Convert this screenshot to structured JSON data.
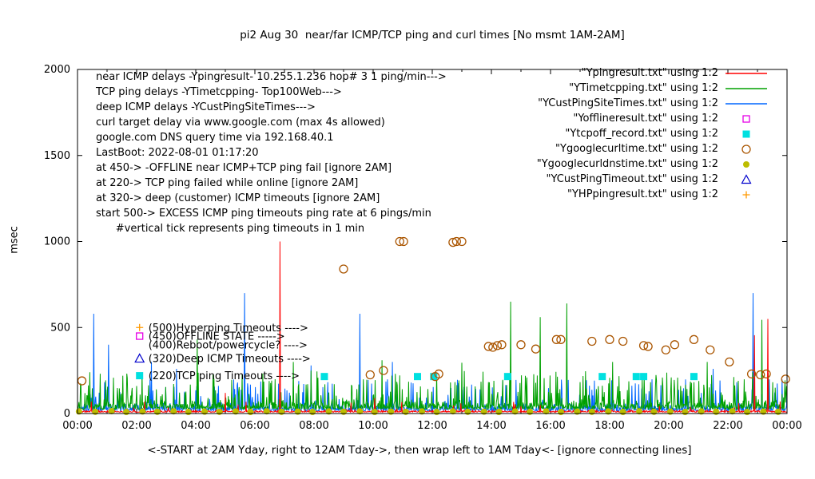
{
  "chart_data": {
    "type": "line+scatter",
    "title": "pi2 Aug 30  near/far ICMP/TCP ping and curl times [No msmt 1AM-2AM]",
    "ylabel": "msec",
    "xlabel": "<-START at 2AM Yday, right to 12AM Tday->, then wrap left to 1AM Tday<- [ignore connecting lines]",
    "xlim": [
      0,
      24
    ],
    "ylim": [
      0,
      2000
    ],
    "xticks": [
      {
        "v": 0,
        "label": "00:00"
      },
      {
        "v": 2,
        "label": "02:00"
      },
      {
        "v": 4,
        "label": "04:00"
      },
      {
        "v": 6,
        "label": "06:00"
      },
      {
        "v": 8,
        "label": "08:00"
      },
      {
        "v": 10,
        "label": "10:00"
      },
      {
        "v": 12,
        "label": "12:00"
      },
      {
        "v": 14,
        "label": "14:00"
      },
      {
        "v": 16,
        "label": "16:00"
      },
      {
        "v": 18,
        "label": "18:00"
      },
      {
        "v": 20,
        "label": "20:00"
      },
      {
        "v": 22,
        "label": "22:00"
      },
      {
        "v": 24,
        "label": "00:00"
      }
    ],
    "yticks": [
      {
        "v": 0,
        "label": "0"
      },
      {
        "v": 500,
        "label": "500"
      },
      {
        "v": 1000,
        "label": "1000"
      },
      {
        "v": 1500,
        "label": "1500"
      },
      {
        "v": 2000,
        "label": "2000"
      }
    ],
    "info_lines": [
      "near ICMP delays -Ypingresult- 10.255.1.236 hop# 3 1 ping/min--->",
      "TCP ping delays -YTimetcpping- Top100Web--->",
      "deep ICMP delays -YCustPingSiteTimes--->",
      "curl target delay via www.google.com (max 4s allowed)",
      "google.com DNS query time via 192.168.40.1",
      "LastBoot: 2022-08-01 01:17:20",
      "at 450-> -OFFLINE near ICMP+TCP ping fail [ignore 2AM]",
      "at 220-> TCP ping failed while online [ignore 2AM]",
      "at 320-> deep (customer) ICMP timeouts [ignore 2AM]",
      "start 500-> EXCESS ICMP ping timeouts ping rate at 6 pings/min",
      "      #vertical tick represents ping timeouts in 1 min"
    ],
    "annotations": [
      {
        "x": 2.1,
        "y": 500,
        "marker": "plus",
        "color": "#ff9900",
        "text": "(500)Hyperping Timeouts ---->"
      },
      {
        "x": 2.1,
        "y": 450,
        "marker": "open-square",
        "color": "#e600e6",
        "text": "(450)OFFLINE STATE ----->"
      },
      {
        "x": 2.1,
        "y": 400,
        "marker": "none",
        "color": "#000000",
        "text": "(400)Reboot/powercycle? ---->"
      },
      {
        "x": 2.1,
        "y": 320,
        "marker": "open-triangle",
        "color": "#0000cc",
        "text": "(320)Deep ICMP Timeouts ---->"
      },
      {
        "x": 2.1,
        "y": 220,
        "marker": "filled-square",
        "color": "#00e0e0",
        "text": "(220)TCP ping Timeouts ---->"
      }
    ],
    "series": [
      {
        "name": "\"Ypingresult.txt\" using 1:2",
        "kind": "line",
        "z": 3,
        "color": "#ff0000",
        "seed": 11,
        "base": 8,
        "wiggle": 14,
        "burst_prob": 0.02,
        "burst": 70,
        "spikes": [
          [
            5.0,
            120
          ],
          [
            6.85,
            1000
          ],
          [
            10.05,
            90
          ],
          [
            22.9,
            455
          ],
          [
            23.35,
            550
          ]
        ]
      },
      {
        "name": "\"YTimetcpping.txt\" using 1:2",
        "kind": "line",
        "z": 2,
        "color": "#00a000",
        "seed": 22,
        "base": 25,
        "wiggle": 60,
        "burst_prob": 0.2,
        "burst": 225,
        "spikes": [
          [
            4.05,
            430
          ],
          [
            7.3,
            300
          ],
          [
            10.3,
            310
          ],
          [
            13.0,
            295
          ],
          [
            14.65,
            650
          ],
          [
            15.65,
            560
          ],
          [
            16.55,
            640
          ],
          [
            18.1,
            300
          ],
          [
            21.3,
            300
          ],
          [
            23.15,
            545
          ]
        ]
      },
      {
        "name": "\"YCustPingSiteTimes.txt\" using 1:2",
        "kind": "line",
        "z": 1,
        "color": "#0066ff",
        "seed": 33,
        "base": 15,
        "wiggle": 50,
        "burst_prob": 0.15,
        "burst": 185,
        "spikes": [
          [
            0.55,
            580
          ],
          [
            1.05,
            400
          ],
          [
            2.5,
            300
          ],
          [
            3.35,
            260
          ],
          [
            5.65,
            700
          ],
          [
            7.9,
            280
          ],
          [
            9.55,
            580
          ],
          [
            10.65,
            300
          ],
          [
            21.5,
            260
          ],
          [
            22.85,
            700
          ]
        ]
      },
      {
        "name": "\"Yofflineresult.txt\" using 1:2",
        "kind": "points",
        "marker": "open-square",
        "color": "#e600e6",
        "points": []
      },
      {
        "name": "\"Ytcpoff_record.txt\" using 1:2",
        "kind": "points",
        "marker": "filled-square",
        "color": "#00e0e0",
        "points": [
          [
            8.35,
            215
          ],
          [
            11.5,
            215
          ],
          [
            12.05,
            215
          ],
          [
            14.55,
            215
          ],
          [
            17.75,
            215
          ],
          [
            18.9,
            215
          ],
          [
            19.15,
            215
          ],
          [
            20.85,
            215
          ]
        ]
      },
      {
        "name": "\"Ygooglecurltime.txt\" using 1:2",
        "kind": "points",
        "marker": "open-circle",
        "color": "#aa5500",
        "points": [
          [
            0.15,
            190
          ],
          [
            9.0,
            840
          ],
          [
            9.9,
            225
          ],
          [
            10.35,
            250
          ],
          [
            10.9,
            1000
          ],
          [
            11.03,
            1000
          ],
          [
            12.1,
            215
          ],
          [
            12.22,
            230
          ],
          [
            12.7,
            995
          ],
          [
            12.82,
            1000
          ],
          [
            13.0,
            1000
          ],
          [
            13.9,
            390
          ],
          [
            14.05,
            385
          ],
          [
            14.2,
            395
          ],
          [
            14.35,
            400
          ],
          [
            15.0,
            400
          ],
          [
            15.5,
            375
          ],
          [
            16.2,
            430
          ],
          [
            16.35,
            430
          ],
          [
            17.4,
            420
          ],
          [
            18.0,
            430
          ],
          [
            18.45,
            420
          ],
          [
            19.15,
            395
          ],
          [
            19.3,
            390
          ],
          [
            19.9,
            370
          ],
          [
            20.2,
            400
          ],
          [
            20.85,
            430
          ],
          [
            21.4,
            370
          ],
          [
            22.05,
            300
          ],
          [
            22.8,
            230
          ],
          [
            23.1,
            225
          ],
          [
            23.3,
            230
          ],
          [
            23.95,
            200
          ]
        ]
      },
      {
        "name": "\"Ygooglecurldnstime.txt\" using 1:2",
        "kind": "points",
        "marker": "filled-circle",
        "color": "#bdbd00",
        "points": [
          [
            0.05,
            12
          ],
          [
            0.6,
            10
          ],
          [
            1.15,
            14
          ],
          [
            1.65,
            9
          ],
          [
            2.2,
            12
          ],
          [
            2.7,
            10
          ],
          [
            3.25,
            13
          ],
          [
            3.75,
            9
          ],
          [
            4.3,
            11
          ],
          [
            4.8,
            10
          ],
          [
            5.35,
            12
          ],
          [
            5.85,
            9
          ],
          [
            6.4,
            13
          ],
          [
            6.9,
            10
          ],
          [
            7.45,
            11
          ],
          [
            7.95,
            9
          ],
          [
            8.5,
            12
          ],
          [
            9.0,
            10
          ],
          [
            9.55,
            13
          ],
          [
            10.05,
            9
          ],
          [
            10.6,
            11
          ],
          [
            11.1,
            10
          ],
          [
            11.65,
            12
          ],
          [
            12.15,
            9
          ],
          [
            12.7,
            13
          ],
          [
            13.2,
            10
          ],
          [
            13.75,
            11
          ],
          [
            14.25,
            9
          ],
          [
            14.8,
            12
          ],
          [
            15.3,
            10
          ],
          [
            15.85,
            13
          ],
          [
            16.35,
            9
          ],
          [
            16.9,
            11
          ],
          [
            17.4,
            10
          ],
          [
            17.95,
            12
          ],
          [
            18.45,
            9
          ],
          [
            19.0,
            13
          ],
          [
            19.5,
            10
          ],
          [
            20.05,
            11
          ],
          [
            20.55,
            9
          ],
          [
            21.1,
            12
          ],
          [
            21.6,
            10
          ],
          [
            22.15,
            13
          ],
          [
            22.65,
            9
          ],
          [
            23.2,
            11
          ],
          [
            23.7,
            10
          ]
        ]
      },
      {
        "name": "\"YCustPingTimeout.txt\" using 1:2",
        "kind": "points",
        "marker": "open-triangle",
        "color": "#0000cc",
        "points": []
      },
      {
        "name": "\"YHPpingresult.txt\" using 1:2",
        "kind": "points",
        "marker": "plus",
        "color": "#ff9900",
        "points": []
      }
    ]
  }
}
